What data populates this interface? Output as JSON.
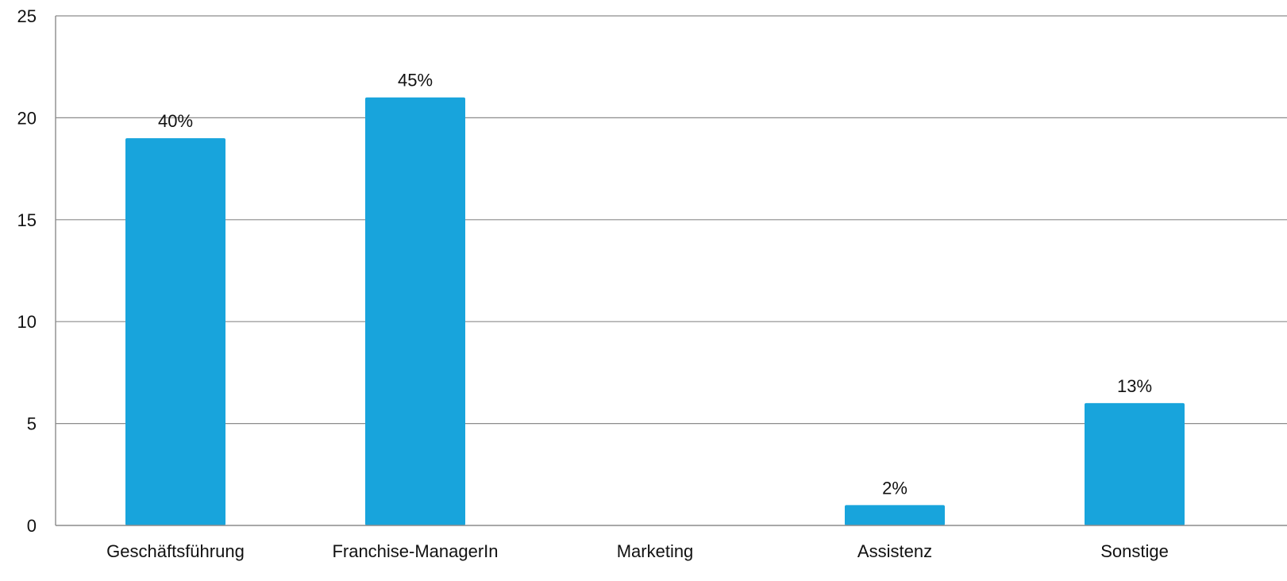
{
  "chart_data": {
    "type": "bar",
    "title": "",
    "xlabel": "",
    "ylabel": "",
    "categories": [
      "Geschäftsführung",
      "Franchise-ManagerIn",
      "Marketing",
      "Assistenz",
      "Sonstige"
    ],
    "values": [
      19,
      21,
      0,
      1,
      6
    ],
    "data_labels": [
      "40%",
      "45%",
      "",
      "2%",
      "13%"
    ],
    "ylim": [
      0,
      25
    ],
    "yticks": [
      0,
      5,
      10,
      15,
      20,
      25
    ],
    "grid": true,
    "legend": "none",
    "bar_color": "#18a4dc"
  }
}
